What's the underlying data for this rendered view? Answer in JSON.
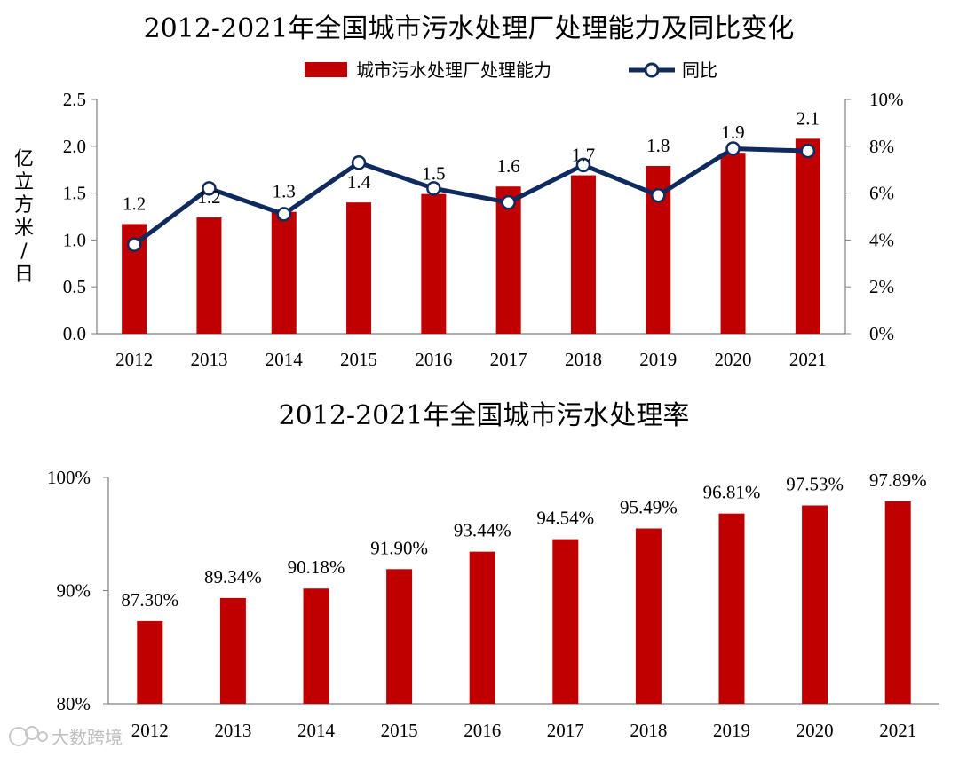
{
  "colors": {
    "bar": "#c00000",
    "line": "#0f2a5e",
    "axis": "#7f7f7f",
    "text": "#1a1a1a"
  },
  "watermark": {
    "icon": "watermark-logo-icon",
    "text": "大数跨境"
  },
  "chart_data": [
    {
      "type": "bar+line",
      "title": "2012-2021年全国城市污水处理厂处理能力及同比变化",
      "categories": [
        "2012",
        "2013",
        "2014",
        "2015",
        "2016",
        "2017",
        "2018",
        "2019",
        "2020",
        "2021"
      ],
      "series": [
        {
          "name": "城市污水处理厂处理能力",
          "type": "bar",
          "axis": "left",
          "values": [
            1.17,
            1.24,
            1.3,
            1.4,
            1.49,
            1.57,
            1.69,
            1.79,
            1.93,
            2.08
          ],
          "labels": [
            "1.2",
            "1.2",
            "1.3",
            "1.4",
            "1.5",
            "1.6",
            "1.7",
            "1.8",
            "1.9",
            "2.1"
          ]
        },
        {
          "name": "同比",
          "type": "line",
          "axis": "right",
          "values": [
            3.8,
            6.2,
            5.1,
            7.3,
            6.2,
            5.6,
            7.2,
            5.9,
            7.9,
            7.8
          ]
        }
      ],
      "ylabel": "亿立方米/日",
      "ylim": [
        0,
        2.5
      ],
      "yticks": [
        "0.0",
        "0.5",
        "1.0",
        "1.5",
        "2.0",
        "2.5"
      ],
      "y2lim": [
        0,
        10
      ],
      "y2ticks": [
        "0%",
        "2%",
        "4%",
        "6%",
        "8%",
        "10%"
      ],
      "legend": "top-center"
    },
    {
      "type": "bar",
      "title": "2012-2021年全国城市污水处理率",
      "categories": [
        "2012",
        "2013",
        "2014",
        "2015",
        "2016",
        "2017",
        "2018",
        "2019",
        "2020",
        "2021"
      ],
      "values": [
        87.3,
        89.34,
        90.18,
        91.9,
        93.44,
        94.54,
        95.49,
        96.81,
        97.53,
        97.89
      ],
      "labels": [
        "87.30%",
        "89.34%",
        "90.18%",
        "91.90%",
        "93.44%",
        "94.54%",
        "95.49%",
        "96.81%",
        "97.53%",
        "97.89%"
      ],
      "ylim": [
        80,
        100
      ],
      "yticks": [
        "80%",
        "90%",
        "100%"
      ]
    }
  ]
}
